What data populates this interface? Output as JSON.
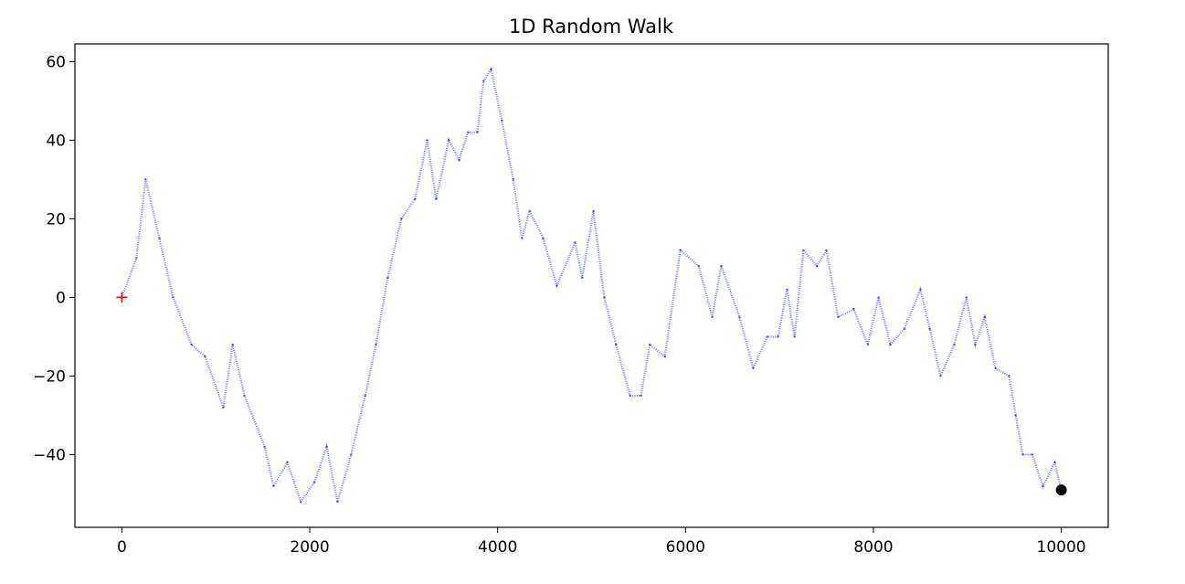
{
  "chart_data": {
    "type": "line",
    "title": "1D Random Walk",
    "xlabel": "",
    "ylabel": "",
    "xlim": [
      -500,
      10500
    ],
    "ylim": [
      -58.5,
      64.5
    ],
    "xticks": [
      0,
      2000,
      4000,
      6000,
      8000,
      10000
    ],
    "yticks": [
      -40,
      -20,
      0,
      20,
      40,
      60
    ],
    "grid": false,
    "series": [
      {
        "color": "#0000ff",
        "style": "small semi-transparent dot markers",
        "points": [
          [
            0,
            0
          ],
          [
            155,
            10
          ],
          [
            253,
            30
          ],
          [
            400,
            15
          ],
          [
            545,
            0
          ],
          [
            740,
            -12
          ],
          [
            885,
            -15
          ],
          [
            1080,
            -28
          ],
          [
            1180,
            -12
          ],
          [
            1305,
            -25
          ],
          [
            1520,
            -38
          ],
          [
            1615,
            -48
          ],
          [
            1760,
            -42
          ],
          [
            1905,
            -52
          ],
          [
            2050,
            -47
          ],
          [
            2180,
            -38
          ],
          [
            2295,
            -52
          ],
          [
            2440,
            -40
          ],
          [
            2590,
            -25
          ],
          [
            2705,
            -12
          ],
          [
            2830,
            5
          ],
          [
            2975,
            20
          ],
          [
            3120,
            25
          ],
          [
            3250,
            40
          ],
          [
            3345,
            25
          ],
          [
            3480,
            40
          ],
          [
            3590,
            35
          ],
          [
            3685,
            42
          ],
          [
            3785,
            42
          ],
          [
            3850,
            55
          ],
          [
            3930,
            58
          ],
          [
            4045,
            45
          ],
          [
            4165,
            30
          ],
          [
            4260,
            15
          ],
          [
            4340,
            22
          ],
          [
            4485,
            15
          ],
          [
            4630,
            3
          ],
          [
            4825,
            14
          ],
          [
            4900,
            5
          ],
          [
            5020,
            22
          ],
          [
            5135,
            0
          ],
          [
            5260,
            -12
          ],
          [
            5410,
            -25
          ],
          [
            5525,
            -25
          ],
          [
            5620,
            -12
          ],
          [
            5780,
            -15
          ],
          [
            5945,
            12
          ],
          [
            6140,
            8
          ],
          [
            6285,
            -5
          ],
          [
            6380,
            8
          ],
          [
            6575,
            -5
          ],
          [
            6720,
            -18
          ],
          [
            6870,
            -10
          ],
          [
            6985,
            -10
          ],
          [
            7080,
            2
          ],
          [
            7160,
            -10
          ],
          [
            7255,
            12
          ],
          [
            7400,
            8
          ],
          [
            7500,
            12
          ],
          [
            7625,
            -5
          ],
          [
            7790,
            -3
          ],
          [
            7940,
            -12
          ],
          [
            8055,
            0
          ],
          [
            8180,
            -12
          ],
          [
            8330,
            -8
          ],
          [
            8500,
            2
          ],
          [
            8600,
            -8
          ],
          [
            8715,
            -20
          ],
          [
            8860,
            -12
          ],
          [
            8990,
            0
          ],
          [
            9085,
            -12
          ],
          [
            9185,
            -5
          ],
          [
            9300,
            -18
          ],
          [
            9445,
            -20
          ],
          [
            9515,
            -30
          ],
          [
            9590,
            -40
          ],
          [
            9690,
            -40
          ],
          [
            9805,
            -48
          ],
          [
            9930,
            -42
          ],
          [
            10000,
            -49
          ]
        ]
      }
    ],
    "start_marker": {
      "x": 0,
      "y": 0,
      "color": "#ff0000",
      "shape": "plus"
    },
    "end_marker": {
      "x": 10000,
      "y": -49,
      "color": "#000000",
      "shape": "circle"
    }
  }
}
